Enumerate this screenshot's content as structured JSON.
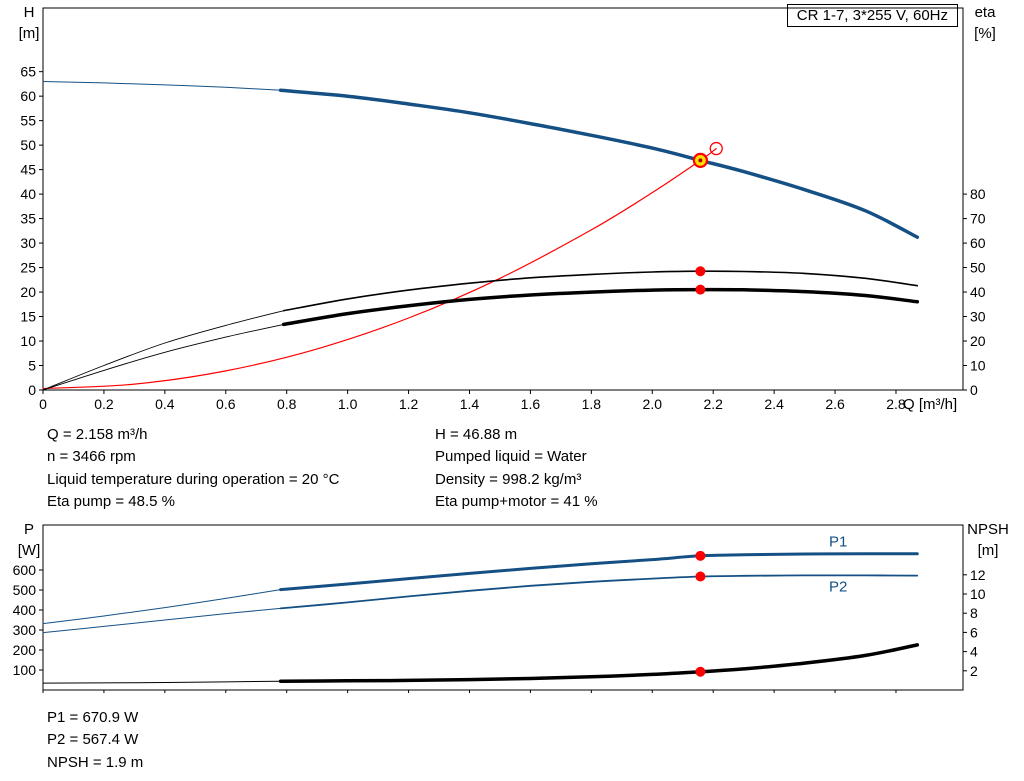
{
  "info_top": {
    "left": [
      "Q = 2.158 m³/h",
      "n = 3466 rpm",
      "Liquid temperature during operation = 20 °C",
      "Eta pump = 48.5 %"
    ],
    "right": [
      "H = 46.88 m",
      "Pumped liquid = Water",
      "Density = 998.2 kg/m³",
      "Eta pump+motor = 41 %"
    ]
  },
  "info_bottom": [
    "P1 = 670.9 W",
    "P2 = 567.4 W",
    "NPSH = 1.9 m"
  ],
  "colors": {
    "curve_blue": "#155084",
    "curve_black": "#000000",
    "curve_red": "#ff0000",
    "marker_red": "#ff0000",
    "duty_yellow": "#ffdf00"
  },
  "chart_data": [
    {
      "type": "line",
      "title": "CR 1-7, 3*255 V, 60Hz",
      "axes": {
        "x": {
          "label": "Q [m³/h]",
          "min": 0,
          "max": 3.02,
          "ticks": [
            0,
            0.2,
            0.4,
            0.6,
            0.8,
            1.0,
            1.2,
            1.4,
            1.6,
            1.8,
            2.0,
            2.2,
            2.4,
            2.6,
            2.8
          ],
          "tick_labels": [
            "0",
            "0.2",
            "0.4",
            "0.6",
            "0.8",
            "1.0",
            "1.2",
            "1.4",
            "1.6",
            "1.8",
            "2.0",
            "2.2",
            "2.4",
            "2.6",
            "2.8"
          ]
        },
        "y_left": {
          "name": "H",
          "unit": "[m]",
          "min": 0,
          "max": 78,
          "ticks": [
            0,
            5,
            10,
            15,
            20,
            25,
            30,
            35,
            40,
            45,
            50,
            55,
            60,
            65
          ],
          "tick_labels": [
            "0",
            "5",
            "10",
            "15",
            "20",
            "25",
            "30",
            "35",
            "40",
            "45",
            "50",
            "55",
            "60",
            "65"
          ]
        },
        "y_right": {
          "name": "eta",
          "unit": "[%]",
          "min": 0,
          "max": 156,
          "ticks": [
            0,
            10,
            20,
            30,
            40,
            50,
            60,
            70,
            80
          ],
          "tick_labels": [
            "0",
            "10",
            "20",
            "30",
            "40",
            "50",
            "60",
            "70",
            "80"
          ]
        }
      },
      "series": [
        {
          "name": "qh-curve-extension",
          "axis": "left",
          "color": "#155084",
          "width": 1,
          "points": [
            [
              0,
              63
            ],
            [
              0.2,
              62.7
            ],
            [
              0.4,
              62.3
            ],
            [
              0.6,
              61.8
            ],
            [
              0.78,
              61.2
            ]
          ]
        },
        {
          "name": "qh-curve",
          "axis": "left",
          "color": "#155084",
          "width": 3.5,
          "points": [
            [
              0.78,
              61.2
            ],
            [
              1.0,
              60.0
            ],
            [
              1.2,
              58.4
            ],
            [
              1.4,
              56.6
            ],
            [
              1.6,
              54.4
            ],
            [
              1.8,
              52.0
            ],
            [
              2.0,
              49.4
            ],
            [
              2.158,
              46.88
            ],
            [
              2.3,
              44.6
            ],
            [
              2.5,
              40.9
            ],
            [
              2.7,
              36.6
            ],
            [
              2.87,
              31.2
            ]
          ]
        },
        {
          "name": "system-curve",
          "axis": "left",
          "color": "#ff0000",
          "width": 1.2,
          "points": [
            [
              0,
              0.3
            ],
            [
              0.3,
              1.2
            ],
            [
              0.6,
              3.9
            ],
            [
              0.9,
              8.4
            ],
            [
              1.2,
              14.7
            ],
            [
              1.5,
              22.8
            ],
            [
              1.8,
              32.7
            ],
            [
              2.0,
              40.3
            ],
            [
              2.158,
              46.88
            ],
            [
              2.21,
              49.3
            ]
          ]
        },
        {
          "name": "eta-pump-extension",
          "axis": "right",
          "color": "#000000",
          "width": 0.9,
          "points": [
            [
              0,
              0
            ],
            [
              0.2,
              10
            ],
            [
              0.4,
              19.2
            ],
            [
              0.6,
              26.4
            ],
            [
              0.79,
              32.4
            ]
          ]
        },
        {
          "name": "eta-pump-curve",
          "axis": "right",
          "color": "#000000",
          "width": 1.6,
          "points": [
            [
              0.79,
              32.4
            ],
            [
              1.0,
              37.2
            ],
            [
              1.2,
              40.8
            ],
            [
              1.4,
              43.6
            ],
            [
              1.6,
              45.8
            ],
            [
              1.8,
              47.2
            ],
            [
              2.0,
              48.2
            ],
            [
              2.158,
              48.5
            ],
            [
              2.3,
              48.4
            ],
            [
              2.5,
              47.6
            ],
            [
              2.7,
              45.6
            ],
            [
              2.87,
              42.6
            ]
          ]
        },
        {
          "name": "eta-pump-motor-extension",
          "axis": "right",
          "color": "#000000",
          "width": 0.9,
          "points": [
            [
              0,
              0
            ],
            [
              0.2,
              8
            ],
            [
              0.4,
              15.4
            ],
            [
              0.6,
              21.6
            ],
            [
              0.79,
              26.8
            ]
          ]
        },
        {
          "name": "eta-pump-motor-curve",
          "axis": "right",
          "color": "#000000",
          "width": 3.5,
          "points": [
            [
              0.79,
              26.8
            ],
            [
              1.0,
              31.2
            ],
            [
              1.2,
              34.4
            ],
            [
              1.4,
              37.0
            ],
            [
              1.6,
              38.8
            ],
            [
              1.8,
              40.0
            ],
            [
              2.0,
              40.8
            ],
            [
              2.158,
              41.0
            ],
            [
              2.3,
              40.9
            ],
            [
              2.5,
              40.2
            ],
            [
              2.7,
              38.6
            ],
            [
              2.87,
              36.0
            ]
          ]
        }
      ],
      "markers": [
        {
          "name": "rated-point-marker",
          "q": 2.21,
          "v": 49.3,
          "axis": "left",
          "r": 6,
          "fill": "none",
          "stroke": "#ff0000",
          "stroke_width": 1.3
        },
        {
          "name": "duty-point-marker",
          "q": 2.158,
          "v": 46.88,
          "axis": "left",
          "r": 6.5,
          "fill": "#ffdf00",
          "stroke": "#ff0000",
          "stroke_width": 2.2
        },
        {
          "name": "duty-point-center",
          "q": 2.158,
          "v": 46.88,
          "axis": "left",
          "r": 2,
          "fill": "#b00000"
        },
        {
          "name": "eta-pump-duty-marker",
          "q": 2.158,
          "v": 48.5,
          "axis": "right",
          "r": 5,
          "fill": "#ff0000"
        },
        {
          "name": "eta-pump-motor-duty-marker",
          "q": 2.158,
          "v": 41,
          "axis": "right",
          "r": 5,
          "fill": "#ff0000"
        }
      ],
      "labels": []
    },
    {
      "type": "line",
      "title": "",
      "axes": {
        "x": {
          "label": "",
          "min": 0,
          "max": 3.02,
          "ticks": [
            0,
            0.2,
            0.4,
            0.6,
            0.8,
            1.0,
            1.2,
            1.4,
            1.6,
            1.8,
            2.0,
            2.2,
            2.4,
            2.6,
            2.8
          ],
          "tick_labels": null
        },
        "y_left": {
          "name": "P",
          "unit": "[W]",
          "min": 0,
          "max": 825,
          "ticks": [
            100,
            200,
            300,
            400,
            500,
            600
          ],
          "tick_labels": [
            "100",
            "200",
            "300",
            "400",
            "500",
            "600"
          ]
        },
        "y_right": {
          "name": "NPSH",
          "unit": "[m]",
          "min": 0,
          "max": 17.1875,
          "ticks": [
            2,
            4,
            6,
            8,
            10,
            12
          ],
          "tick_labels": [
            "2",
            "4",
            "6",
            "8",
            "10",
            "12"
          ]
        }
      },
      "series": [
        {
          "name": "p1-extension",
          "axis": "left",
          "color": "#155084",
          "width": 1,
          "points": [
            [
              0,
              332
            ],
            [
              0.2,
              370
            ],
            [
              0.4,
              412
            ],
            [
              0.6,
              458
            ],
            [
              0.78,
              502
            ]
          ]
        },
        {
          "name": "p1-curve",
          "axis": "left",
          "color": "#155084",
          "width": 3,
          "points": [
            [
              0.78,
              502
            ],
            [
              1.0,
              530
            ],
            [
              1.2,
              557
            ],
            [
              1.4,
              583
            ],
            [
              1.6,
              608
            ],
            [
              1.8,
              631
            ],
            [
              2.0,
              652
            ],
            [
              2.158,
              670.9
            ],
            [
              2.3,
              676
            ],
            [
              2.5,
              680
            ],
            [
              2.7,
              681
            ],
            [
              2.87,
              681
            ]
          ]
        },
        {
          "name": "p2-extension",
          "axis": "left",
          "color": "#155084",
          "width": 1,
          "points": [
            [
              0,
              287
            ],
            [
              0.2,
              318
            ],
            [
              0.4,
              350
            ],
            [
              0.6,
              382
            ],
            [
              0.78,
              408
            ]
          ]
        },
        {
          "name": "p2-curve",
          "axis": "left",
          "color": "#155084",
          "width": 1.8,
          "points": [
            [
              0.78,
              408
            ],
            [
              1.0,
              438
            ],
            [
              1.2,
              468
            ],
            [
              1.4,
              496
            ],
            [
              1.6,
              521
            ],
            [
              1.8,
              541
            ],
            [
              2.0,
              557
            ],
            [
              2.158,
              567.4
            ],
            [
              2.3,
              571
            ],
            [
              2.5,
              573
            ],
            [
              2.7,
              573
            ],
            [
              2.87,
              572
            ]
          ]
        },
        {
          "name": "npsh-extension",
          "axis": "right",
          "color": "#000000",
          "width": 1,
          "points": [
            [
              0,
              0.72
            ],
            [
              0.3,
              0.76
            ],
            [
              0.6,
              0.84
            ],
            [
              0.78,
              0.92
            ]
          ]
        },
        {
          "name": "npsh-curve",
          "axis": "right",
          "color": "#000000",
          "width": 3.5,
          "points": [
            [
              0.78,
              0.92
            ],
            [
              1.0,
              0.96
            ],
            [
              1.2,
              1.0
            ],
            [
              1.4,
              1.08
            ],
            [
              1.6,
              1.2
            ],
            [
              1.8,
              1.38
            ],
            [
              2.0,
              1.62
            ],
            [
              2.158,
              1.9
            ],
            [
              2.3,
              2.2
            ],
            [
              2.5,
              2.8
            ],
            [
              2.7,
              3.6
            ],
            [
              2.87,
              4.7
            ]
          ]
        }
      ],
      "markers": [
        {
          "name": "p1-duty-marker",
          "q": 2.158,
          "v": 670.9,
          "axis": "left",
          "r": 5,
          "fill": "#ff0000"
        },
        {
          "name": "p2-duty-marker",
          "q": 2.158,
          "v": 567.4,
          "axis": "left",
          "r": 5,
          "fill": "#ff0000"
        },
        {
          "name": "npsh-duty-marker",
          "q": 2.158,
          "v": 1.9,
          "axis": "right",
          "r": 5,
          "fill": "#ff0000"
        }
      ],
      "labels": [
        {
          "text": "P1",
          "q": 2.58,
          "v": 718,
          "axis": "left",
          "color": "#155084"
        },
        {
          "text": "P2",
          "q": 2.58,
          "v": 492,
          "axis": "left",
          "color": "#155084"
        }
      ]
    }
  ]
}
